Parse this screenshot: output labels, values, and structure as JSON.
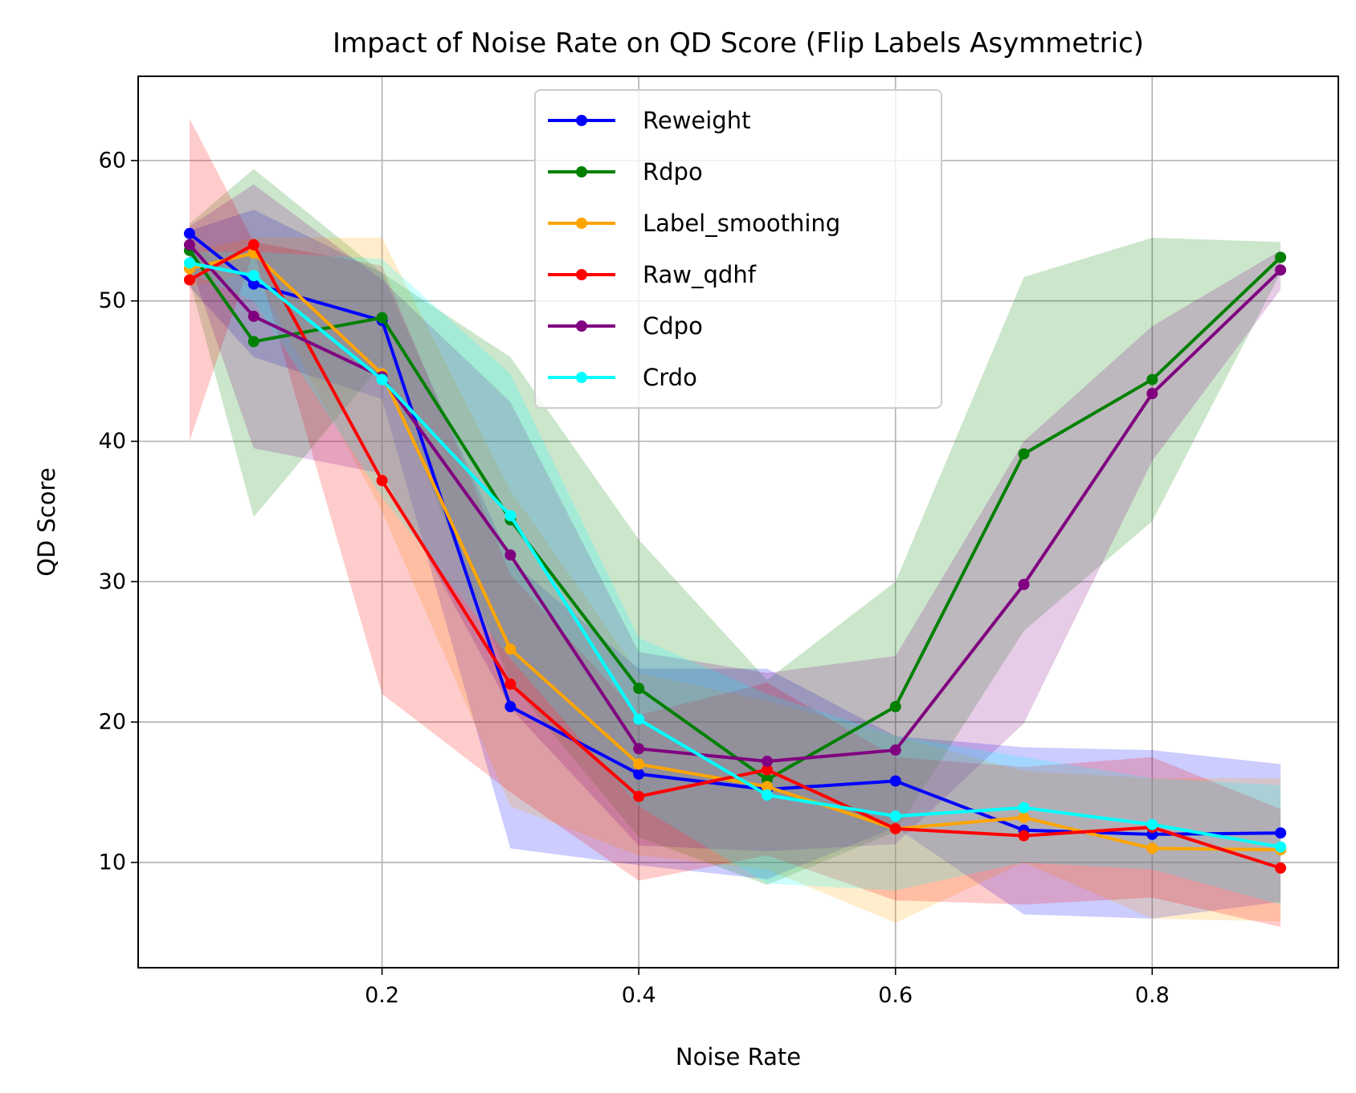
{
  "chart_data": {
    "type": "line",
    "title": "Impact of Noise Rate on QD Score (Flip Labels Asymmetric)",
    "xlabel": "Noise Rate",
    "ylabel": "QD Score",
    "xlim": [
      0.01,
      0.945
    ],
    "ylim": [
      2.5,
      66.0
    ],
    "xticks": [
      0.2,
      0.4,
      0.6,
      0.8
    ],
    "xtick_labels": [
      "0.2",
      "0.4",
      "0.6",
      "0.8"
    ],
    "yticks": [
      10,
      20,
      30,
      40,
      50,
      60
    ],
    "ytick_labels": [
      "10",
      "20",
      "30",
      "40",
      "50",
      "60"
    ],
    "grid": true,
    "legend_position": "upper-center",
    "x": [
      0.05,
      0.1,
      0.2,
      0.3,
      0.4,
      0.5,
      0.6,
      0.7,
      0.8,
      0.9
    ],
    "series": [
      {
        "name": "Reweight",
        "color": "#0000ff",
        "values": [
          54.8,
          51.2,
          48.6,
          21.1,
          16.3,
          15.2,
          15.8,
          12.3,
          12.0,
          12.1
        ],
        "band_upper": [
          55.0,
          56.5,
          52.0,
          31.5,
          23.8,
          23.8,
          19.0,
          18.2,
          18.0,
          17.0
        ],
        "band_lower": [
          51.0,
          46.0,
          43.0,
          11.0,
          9.8,
          8.8,
          12.5,
          6.3,
          6.0,
          7.2
        ]
      },
      {
        "name": "Rdpo",
        "color": "#008000",
        "values": [
          53.6,
          47.1,
          48.8,
          34.4,
          22.4,
          15.9,
          21.1,
          39.1,
          44.4,
          53.1
        ],
        "band_upper": [
          55.5,
          59.4,
          52.0,
          46.0,
          33.0,
          23.0,
          30.0,
          51.7,
          54.5,
          54.2
        ],
        "band_lower": [
          51.5,
          34.6,
          45.5,
          22.8,
          11.8,
          8.4,
          12.2,
          26.5,
          34.3,
          52.0
        ]
      },
      {
        "name": "Label_smoothing",
        "color": "#ffa500",
        "values": [
          52.3,
          53.4,
          44.8,
          25.2,
          17.0,
          15.4,
          12.4,
          13.2,
          11.0,
          10.9
        ],
        "band_upper": [
          53.5,
          54.5,
          54.5,
          36.5,
          23.5,
          21.5,
          19.0,
          16.5,
          16.0,
          16.0
        ],
        "band_lower": [
          51.0,
          52.0,
          35.0,
          14.0,
          10.5,
          9.5,
          5.7,
          10.0,
          6.0,
          5.8
        ]
      },
      {
        "name": "Raw_qdhf",
        "color": "#ff0000",
        "values": [
          51.5,
          54.0,
          37.2,
          22.7,
          14.7,
          16.6,
          12.4,
          11.9,
          12.5,
          9.6
        ],
        "band_upper": [
          63.0,
          54.2,
          52.5,
          30.5,
          20.5,
          22.8,
          17.5,
          16.8,
          17.5,
          13.8
        ],
        "band_lower": [
          40.0,
          53.5,
          22.0,
          15.0,
          8.7,
          10.5,
          7.3,
          7.0,
          7.5,
          5.4
        ]
      },
      {
        "name": "Cdpo",
        "color": "#800080",
        "values": [
          54.0,
          48.9,
          44.6,
          31.9,
          18.1,
          17.2,
          18.0,
          29.8,
          43.4,
          52.2
        ],
        "band_upper": [
          55.3,
          58.3,
          51.5,
          42.8,
          25.0,
          23.5,
          24.7,
          40.0,
          48.2,
          53.6
        ],
        "band_lower": [
          52.7,
          39.5,
          37.7,
          21.0,
          11.2,
          10.8,
          11.3,
          19.9,
          38.6,
          50.8
        ]
      },
      {
        "name": "Crdo",
        "color": "#00ffff",
        "values": [
          52.7,
          51.8,
          44.4,
          34.7,
          20.2,
          14.8,
          13.3,
          13.9,
          12.7,
          11.1
        ],
        "band_upper": [
          53.5,
          53.5,
          53.0,
          44.8,
          26.0,
          22.0,
          19.0,
          17.5,
          16.0,
          15.5
        ],
        "band_lower": [
          52.0,
          50.0,
          36.0,
          24.5,
          14.0,
          8.5,
          8.0,
          10.0,
          9.5,
          7.0
        ]
      }
    ]
  }
}
